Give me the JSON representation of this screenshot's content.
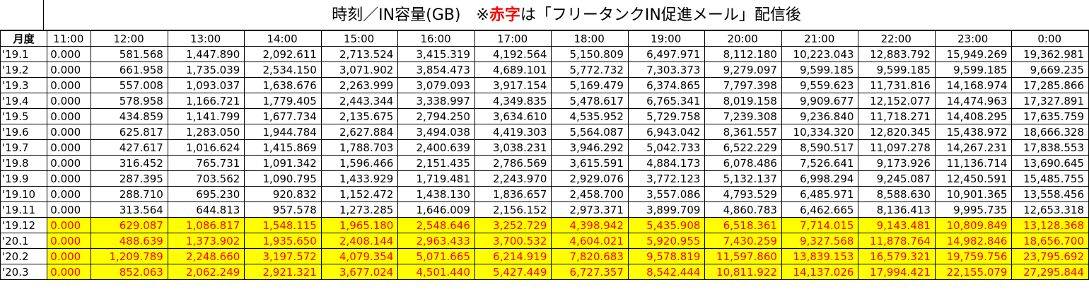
{
  "title": {
    "prefix": "時刻／IN容量(GB)　※",
    "red": "赤字",
    "suffix": "は「フリータンクIN促進メール」配信後"
  },
  "header": {
    "corner": "月度",
    "hours": [
      "11:00",
      "12:00",
      "13:00",
      "14:00",
      "15:00",
      "16:00",
      "17:00",
      "18:00",
      "19:00",
      "20:00",
      "21:00",
      "22:00",
      "23:00",
      "0:00"
    ]
  },
  "rows": [
    {
      "month": "'19.1",
      "highlight": false,
      "values": [
        "0.000",
        "581.568",
        "1,447.890",
        "2,092.611",
        "2,713.524",
        "3,415.319",
        "4,192.564",
        "5,150.809",
        "6,497.971",
        "8,112.180",
        "10,223.043",
        "12,883.792",
        "15,949.269",
        "19,362.981"
      ]
    },
    {
      "month": "'19.2",
      "highlight": false,
      "values": [
        "0.000",
        "661.958",
        "1,735.039",
        "2,534.150",
        "3,071.902",
        "3,854.473",
        "4,689.101",
        "5,772.732",
        "7,303.373",
        "9,279.097",
        "9,599.185",
        "9,599.185",
        "9,599.185",
        "9,669.235"
      ]
    },
    {
      "month": "'19.3",
      "highlight": false,
      "values": [
        "0.000",
        "557.008",
        "1,093.037",
        "1,638.676",
        "2,263.999",
        "3,079.093",
        "3,917.154",
        "5,169.479",
        "6,374.865",
        "7,797.398",
        "9,559.623",
        "11,731.816",
        "14,168.974",
        "17,285.866"
      ]
    },
    {
      "month": "'19.4",
      "highlight": false,
      "values": [
        "0.000",
        "578.958",
        "1,166.721",
        "1,779.405",
        "2,443.344",
        "3,338.997",
        "4,349.835",
        "5,478.617",
        "6,765.341",
        "8,019.158",
        "9,909.677",
        "12,152.077",
        "14,474.963",
        "17,327.891"
      ]
    },
    {
      "month": "'19.5",
      "highlight": false,
      "values": [
        "0.000",
        "434.859",
        "1,141.799",
        "1,677.734",
        "2,135.675",
        "2,794.250",
        "3,634.610",
        "4,535.952",
        "5,729.758",
        "7,239.308",
        "9,236.840",
        "11,718.271",
        "14,408.295",
        "17,635.759"
      ]
    },
    {
      "month": "'19.6",
      "highlight": false,
      "values": [
        "0.000",
        "625.817",
        "1,283.050",
        "1,944.784",
        "2,627.884",
        "3,494.038",
        "4,419.303",
        "5,564.087",
        "6,943.042",
        "8,361.557",
        "10,334.320",
        "12,820.345",
        "15,438.972",
        "18,666.328"
      ]
    },
    {
      "month": "'19.7",
      "highlight": false,
      "values": [
        "0.000",
        "427.617",
        "1,016.624",
        "1,415.869",
        "1,788.703",
        "2,400.639",
        "3,038.231",
        "3,946.292",
        "5,042.733",
        "6,522.229",
        "8,590.517",
        "11,097.278",
        "14,267.231",
        "17,838.553"
      ]
    },
    {
      "month": "'19.8",
      "highlight": false,
      "values": [
        "0.000",
        "316.452",
        "765.731",
        "1,091.342",
        "1,596.466",
        "2,151.435",
        "2,786.569",
        "3,615.591",
        "4,884.173",
        "6,078.486",
        "7,526.641",
        "9,173.926",
        "11,136.714",
        "13,690.645"
      ]
    },
    {
      "month": "'19.9",
      "highlight": false,
      "values": [
        "0.000",
        "287.395",
        "703.562",
        "1,090.795",
        "1,433.929",
        "1,719.481",
        "2,243.970",
        "2,929.076",
        "3,772.123",
        "5,132.137",
        "6,998.294",
        "9,245.087",
        "12,450.591",
        "15,485.755"
      ]
    },
    {
      "month": "'19.10",
      "highlight": false,
      "values": [
        "0.000",
        "288.710",
        "695.230",
        "920.832",
        "1,152.472",
        "1,438.130",
        "1,836.657",
        "2,458.700",
        "3,557.086",
        "4,793.529",
        "6,485.971",
        "8,588.630",
        "10,901.365",
        "13,558.456"
      ]
    },
    {
      "month": "'19.11",
      "highlight": false,
      "values": [
        "0.000",
        "313.564",
        "644.813",
        "957.578",
        "1,273.285",
        "1,646.009",
        "2,156.152",
        "2,973.371",
        "3,899.709",
        "4,860.783",
        "6,462.665",
        "8,136.413",
        "9,995.735",
        "12,653.318"
      ]
    },
    {
      "month": "'19.12",
      "highlight": true,
      "values": [
        "0.000",
        "629.087",
        "1,086.817",
        "1,548.115",
        "1,965.180",
        "2,548.646",
        "3,252.729",
        "4,398.942",
        "5,435.908",
        "6,518.361",
        "7,714.015",
        "9,143.481",
        "10,809.849",
        "13,128.368"
      ]
    },
    {
      "month": "'20.1",
      "highlight": true,
      "values": [
        "0.000",
        "488.639",
        "1,373.902",
        "1,935.650",
        "2,408.144",
        "2,963.433",
        "3,700.532",
        "4,604.021",
        "5,920.955",
        "7,430.259",
        "9,327.568",
        "11,878.764",
        "14,982.846",
        "18,656.700"
      ]
    },
    {
      "month": "'20.2",
      "highlight": true,
      "values": [
        "0.000",
        "1,209.789",
        "2,248.660",
        "3,197.572",
        "4,079.354",
        "5,071.665",
        "6,214.919",
        "7,820.683",
        "9,578.819",
        "11,597.860",
        "13,839.153",
        "16,579.321",
        "19,759.756",
        "23,795.692"
      ]
    },
    {
      "month": "'20.3",
      "highlight": true,
      "values": [
        "0.000",
        "852.063",
        "2,062.249",
        "2,921.321",
        "3,677.024",
        "4,501.440",
        "5,427.449",
        "6,727.357",
        "8,542.444",
        "10,811.922",
        "14,137.026",
        "17,994.421",
        "22,155.079",
        "27,295.844"
      ]
    }
  ],
  "colors": {
    "highlight_bg": "#ffff00",
    "highlight_text": "#ff0000"
  }
}
